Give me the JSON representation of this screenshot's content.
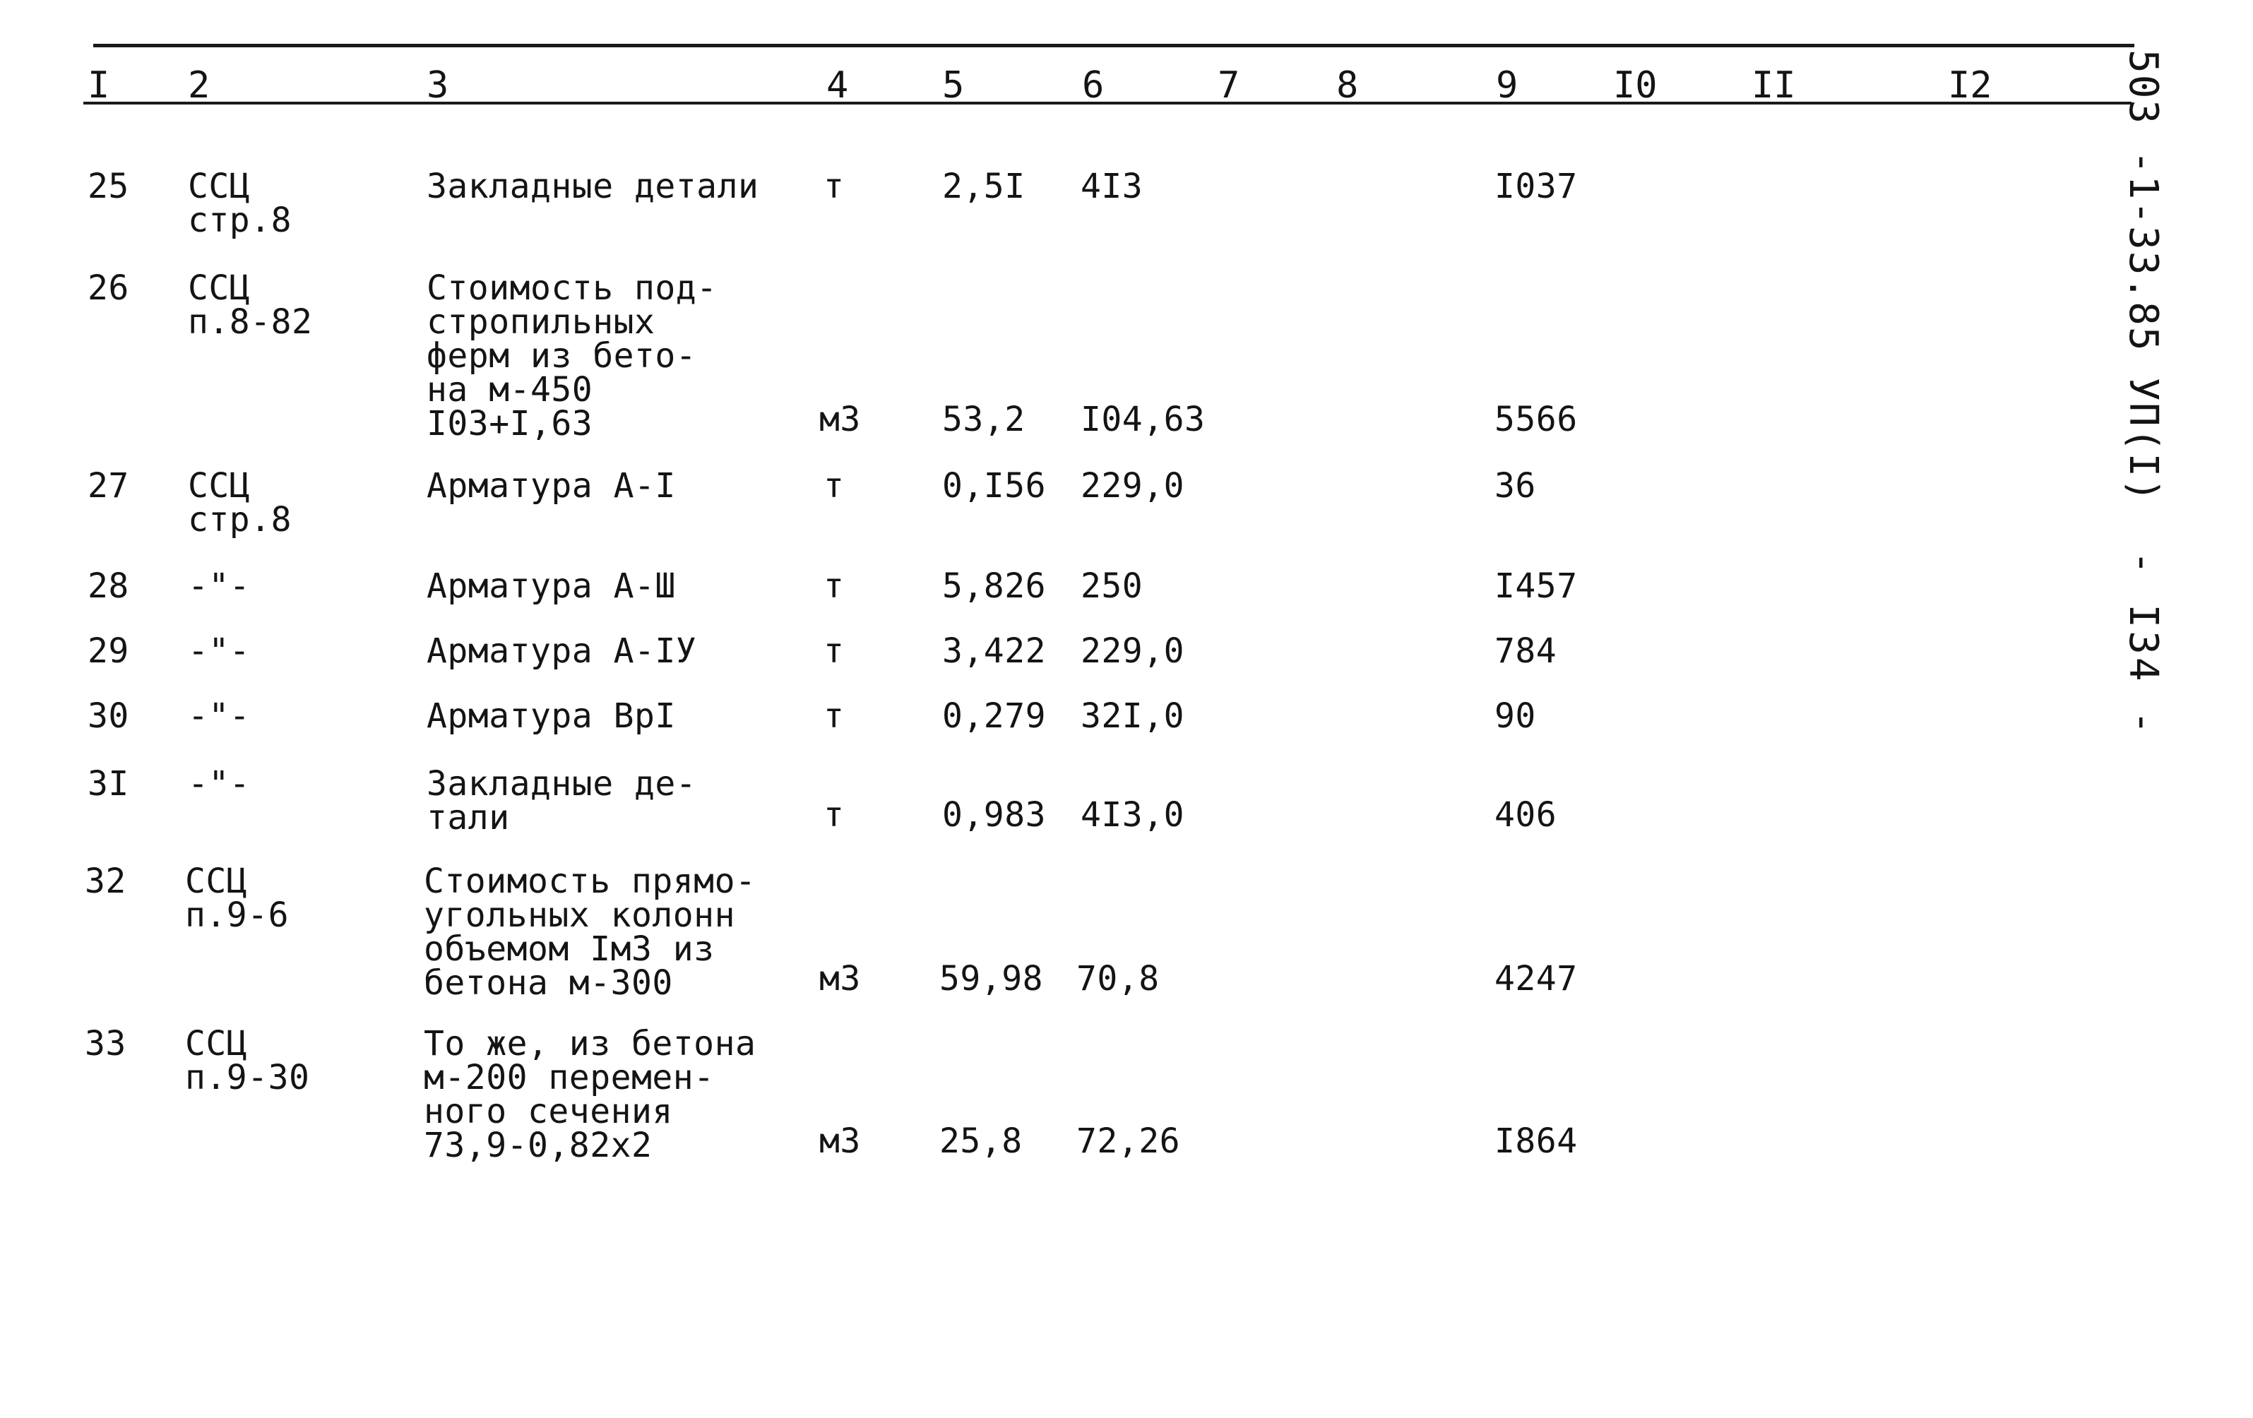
{
  "header": {
    "col1": "I",
    "col2": "2",
    "col3": "3",
    "col4": "4",
    "col5": "5",
    "col6": "6",
    "col7": "7",
    "col8": "8",
    "col9": "9",
    "col10": "I0",
    "col11": "II",
    "col12": "I2"
  },
  "side": {
    "doc_code": "503 -1-33.85 УП(I)",
    "page_number": "- I34 -"
  },
  "rows": [
    {
      "num": "25",
      "ref": "ССЦ\nстр.8",
      "name": "Закладные детали",
      "unit": "т",
      "qty": "2,5I",
      "price": "4I3",
      "total": "I037"
    },
    {
      "num": "26",
      "ref": "ССЦ\nп.8-82",
      "name": "Стоимость под-\nстропильных\nферм из бето-\nна м-450\nI03+I,63",
      "unit": "м3",
      "qty": "53,2",
      "price": "I04,63",
      "total": "5566"
    },
    {
      "num": "27",
      "ref": "ССЦ\nстр.8",
      "name": "Арматура А-I",
      "unit": "т",
      "qty": "0,I56",
      "price": "229,0",
      "total": "36"
    },
    {
      "num": "28",
      "ref": "-\"-",
      "name": "Арматура А-Ш",
      "unit": "т",
      "qty": "5,826",
      "price": "250",
      "total": "I457"
    },
    {
      "num": "29",
      "ref": "-\"-",
      "name": "Арматура А-IУ",
      "unit": "т",
      "qty": "3,422",
      "price": "229,0",
      "total": "784"
    },
    {
      "num": "30",
      "ref": "-\"-",
      "name": "Арматура ВрI",
      "unit": "т",
      "qty": "0,279",
      "price": "32I,0",
      "total": "90"
    },
    {
      "num": "3I",
      "ref": "-\"-",
      "name": "Закладные де-\nтали",
      "unit": "т",
      "qty": "0,983",
      "price": "4I3,0",
      "total": "406"
    },
    {
      "num": "32",
      "ref": "ССЦ\nп.9-6",
      "name": "Стоимость прямо-\nугольных колонн\nобъемом Iм3 из\nбетона м-300",
      "unit": "м3",
      "qty": "59,98",
      "price": "70,8",
      "total": "4247"
    },
    {
      "num": "33",
      "ref": "ССЦ\nп.9-30",
      "name": "То же, из бетона\nм-200 перемен-\nного сечения\n73,9-0,82х2",
      "unit": "м3",
      "qty": "25,8",
      "price": "72,26",
      "total": "I864"
    }
  ]
}
